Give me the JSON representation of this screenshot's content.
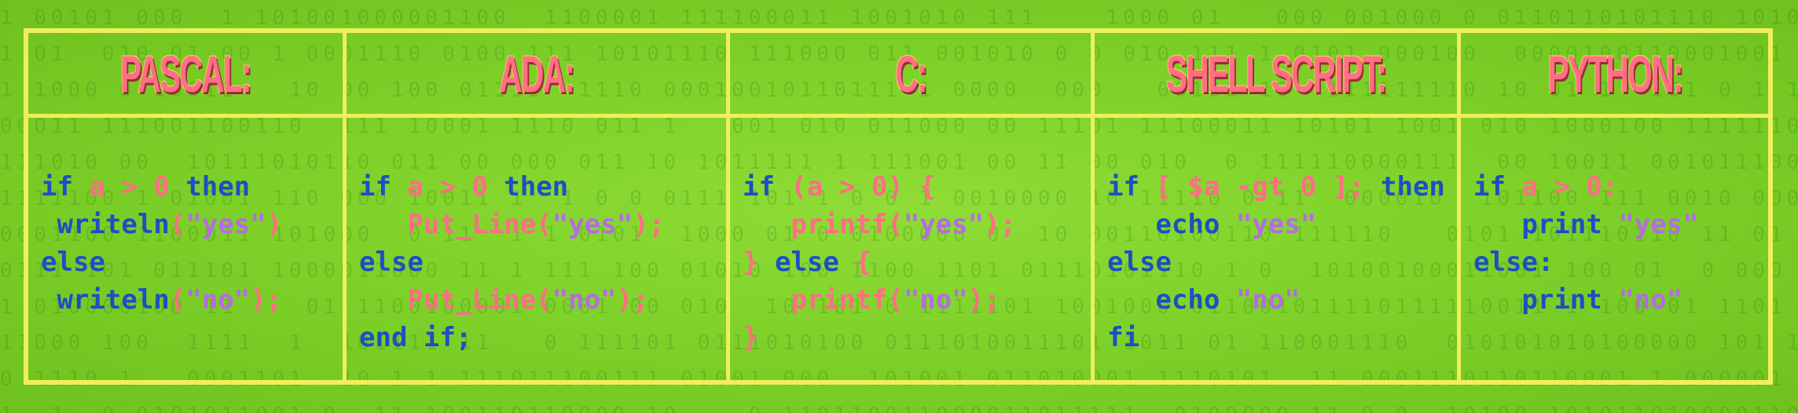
{
  "columns": [
    {
      "title": "PASCAL:",
      "lines": [
        [
          {
            "t": "if ",
            "c": "kw"
          },
          {
            "t": "a > 0",
            "c": "id"
          },
          {
            "t": " then",
            "c": "kw"
          }
        ],
        [
          {
            "t": " writeln",
            "c": "kw"
          },
          {
            "t": "(",
            "c": "id"
          },
          {
            "t": "\"yes\"",
            "c": "str"
          },
          {
            "t": ")",
            "c": "id"
          }
        ],
        [
          {
            "t": "else",
            "c": "kw"
          }
        ],
        [
          {
            "t": " writeln",
            "c": "kw"
          },
          {
            "t": "(",
            "c": "id"
          },
          {
            "t": "\"no\"",
            "c": "str"
          },
          {
            "t": ");",
            "c": "id"
          }
        ]
      ]
    },
    {
      "title": "ADA:",
      "lines": [
        [
          {
            "t": "if ",
            "c": "kw"
          },
          {
            "t": "a > 0",
            "c": "id"
          },
          {
            "t": " then",
            "c": "kw"
          }
        ],
        [
          {
            "t": "   Put_Line(",
            "c": "id"
          },
          {
            "t": "\"yes\"",
            "c": "str"
          },
          {
            "t": ");",
            "c": "id"
          }
        ],
        [
          {
            "t": "else",
            "c": "kw"
          }
        ],
        [
          {
            "t": "   Put_Line(",
            "c": "id"
          },
          {
            "t": "\"no\"",
            "c": "str"
          },
          {
            "t": ");",
            "c": "id"
          }
        ],
        [
          {
            "t": "end if;",
            "c": "kw"
          }
        ]
      ]
    },
    {
      "title": "C:",
      "lines": [
        [
          {
            "t": "if ",
            "c": "kw"
          },
          {
            "t": "(a > 0) {",
            "c": "id"
          }
        ],
        [
          {
            "t": "   printf(",
            "c": "id"
          },
          {
            "t": "\"yes\"",
            "c": "str"
          },
          {
            "t": ");",
            "c": "id"
          }
        ],
        [
          {
            "t": "} ",
            "c": "id"
          },
          {
            "t": "else",
            "c": "kw"
          },
          {
            "t": " {",
            "c": "id"
          }
        ],
        [
          {
            "t": "   printf(",
            "c": "id"
          },
          {
            "t": "\"no\"",
            "c": "str"
          },
          {
            "t": ");",
            "c": "id"
          }
        ],
        [
          {
            "t": "}",
            "c": "id"
          }
        ]
      ]
    },
    {
      "title": "SHELL SCRIPT:",
      "lines": [
        [
          {
            "t": "if ",
            "c": "kw"
          },
          {
            "t": "[ $a -gt 0 ];",
            "c": "id"
          },
          {
            "t": " then",
            "c": "kw"
          }
        ],
        [
          {
            "t": "   echo ",
            "c": "kw"
          },
          {
            "t": "\"yes\"",
            "c": "str"
          }
        ],
        [
          {
            "t": "else",
            "c": "kw"
          }
        ],
        [
          {
            "t": "   echo ",
            "c": "kw"
          },
          {
            "t": "\"no\"",
            "c": "str"
          }
        ],
        [
          {
            "t": "fi",
            "c": "kw"
          }
        ]
      ]
    },
    {
      "title": "PYTHON:",
      "lines": [
        [
          {
            "t": "if ",
            "c": "kw"
          },
          {
            "t": "a > 0:",
            "c": "id"
          }
        ],
        [
          {
            "t": "   print ",
            "c": "kw"
          },
          {
            "t": "\"yes\"",
            "c": "str"
          }
        ],
        [
          {
            "t": "else:",
            "c": "kw"
          }
        ],
        [
          {
            "t": "   print ",
            "c": "kw"
          },
          {
            "t": "\"no\"",
            "c": "str"
          }
        ]
      ]
    }
  ],
  "colors": {
    "background": "#7fd22a",
    "grid": "#efee5c",
    "title": "#ff6f86",
    "keyword": "#1d4fc2",
    "identifier": "#ff6d86",
    "string": "#b66be6"
  }
}
